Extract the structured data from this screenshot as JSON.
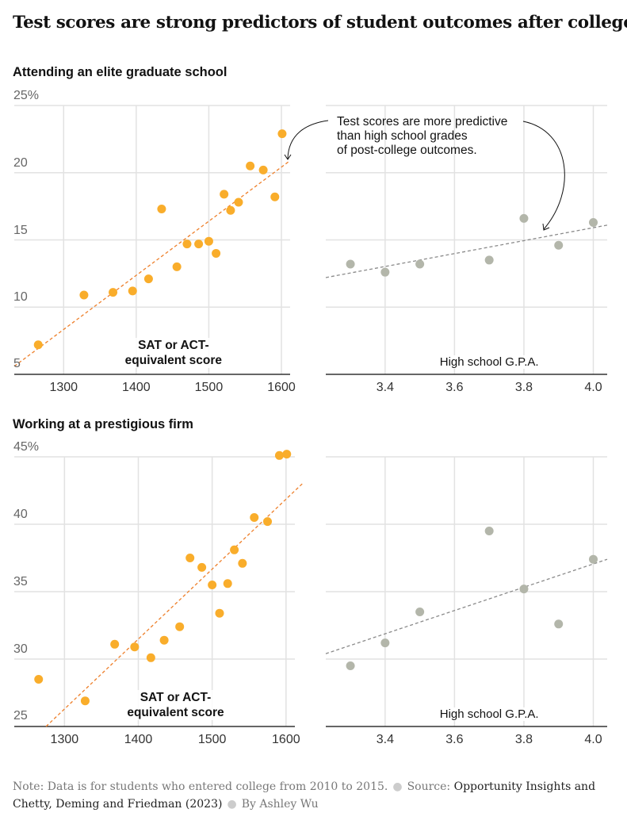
{
  "title": "Test scores are strong predictors of student outcomes after college",
  "annotation": [
    "Test scores are more predictive",
    "than high school grades",
    "of post-college outcomes."
  ],
  "colors": {
    "score_points": "#F9AD2B",
    "score_trend": "#EE7F2A",
    "gpa_points": "#B3B6AA",
    "gpa_trend": "#8A8A8A",
    "grid": "#E2E2E2",
    "axis": "#333333"
  },
  "chart_data": [
    {
      "type": "scatter",
      "row_title": "Attending an elite graduate school",
      "xlabel": "SAT or ACT-equivalent score",
      "xlabel_lines": [
        "SAT or ACT-",
        "equivalent score"
      ],
      "xlim": [
        1232,
        1612
      ],
      "ylim": [
        5,
        25
      ],
      "xticks": [
        1300,
        1400,
        1500,
        1600
      ],
      "xtick_labels": [
        "1300",
        "1400",
        "1500",
        "1600"
      ],
      "yticks": [
        5,
        10,
        15,
        20,
        25
      ],
      "ytick_labels": [
        "5",
        "10",
        "15",
        "20",
        "25%"
      ],
      "grid": true,
      "x": [
        1265,
        1328,
        1368,
        1395,
        1417,
        1435,
        1456,
        1470,
        1486,
        1500,
        1510,
        1521,
        1530,
        1541,
        1557,
        1575,
        1591,
        1601
      ],
      "y": [
        7.2,
        10.9,
        11.1,
        11.2,
        12.1,
        17.3,
        13.0,
        14.7,
        14.7,
        14.9,
        14.0,
        18.4,
        17.2,
        17.8,
        20.5,
        20.2,
        18.2,
        22.9
      ],
      "trendline": {
        "x": [
          1232,
          1612
        ],
        "y": [
          5.6,
          20.9
        ]
      },
      "color_key": "score"
    },
    {
      "type": "scatter",
      "row_title": "Attending an elite graduate school",
      "xlabel": "High school G.P.A.",
      "xlim": [
        3.229,
        4.04
      ],
      "ylim": [
        5,
        25
      ],
      "xticks": [
        3.4,
        3.6,
        3.8,
        4.0
      ],
      "xtick_labels": [
        "3.4",
        "3.6",
        "3.8",
        "4.0"
      ],
      "yticks": [
        5,
        10,
        15,
        20,
        25
      ],
      "grid": true,
      "x": [
        3.3,
        3.4,
        3.5,
        3.7,
        3.8,
        3.9,
        4.0
      ],
      "y": [
        13.2,
        12.6,
        13.2,
        13.5,
        16.6,
        14.6,
        16.3
      ],
      "trendline": {
        "x": [
          3.229,
          4.04
        ],
        "y": [
          12.2,
          16.1
        ]
      },
      "color_key": "gpa"
    },
    {
      "type": "scatter",
      "row_title": "Working at a prestigious firm",
      "xlabel": "SAT or ACT-equivalent score",
      "xlabel_lines": [
        "SAT or ACT-",
        "equivalent score"
      ],
      "xlim": [
        1232,
        1612
      ],
      "ylim": [
        25,
        45
      ],
      "xticks": [
        1300,
        1400,
        1500,
        1600
      ],
      "xtick_labels": [
        "1300",
        "1400",
        "1500",
        "1600"
      ],
      "yticks": [
        25,
        30,
        35,
        40,
        45
      ],
      "ytick_labels": [
        "25",
        "30",
        "35",
        "40",
        "45%"
      ],
      "grid": true,
      "x": [
        1265,
        1328,
        1368,
        1395,
        1417,
        1435,
        1456,
        1470,
        1486,
        1500,
        1510,
        1521,
        1530,
        1541,
        1557,
        1575,
        1591,
        1601
      ],
      "y": [
        28.5,
        26.9,
        31.1,
        30.9,
        30.1,
        31.4,
        32.4,
        37.5,
        36.8,
        35.5,
        33.4,
        35.6,
        38.1,
        37.1,
        40.5,
        40.2,
        45.1,
        45.2
      ],
      "trendline": {
        "x": [
          1275,
          1622
        ],
        "y": [
          25,
          43
        ]
      },
      "color_key": "score"
    },
    {
      "type": "scatter",
      "row_title": "Working at a prestigious firm",
      "xlabel": "High school G.P.A.",
      "xlim": [
        3.229,
        4.04
      ],
      "ylim": [
        25,
        45
      ],
      "xticks": [
        3.4,
        3.6,
        3.8,
        4.0
      ],
      "xtick_labels": [
        "3.4",
        "3.6",
        "3.8",
        "4.0"
      ],
      "yticks": [
        25,
        30,
        35,
        40,
        45
      ],
      "grid": true,
      "x": [
        3.3,
        3.4,
        3.5,
        3.7,
        3.8,
        3.9,
        4.0
      ],
      "y": [
        29.5,
        31.2,
        33.5,
        39.5,
        35.2,
        32.6,
        37.4
      ],
      "trendline": {
        "x": [
          3.229,
          4.04
        ],
        "y": [
          30.4,
          37.4
        ]
      },
      "color_key": "gpa"
    }
  ],
  "footer": {
    "note_label": "Note:",
    "note": "Data is for students who entered college from 2010 to 2015.",
    "source_label": "Source:",
    "source": "Opportunity Insights and Chetty, Deming and Friedman (2023)",
    "byline": "By Ashley Wu"
  }
}
